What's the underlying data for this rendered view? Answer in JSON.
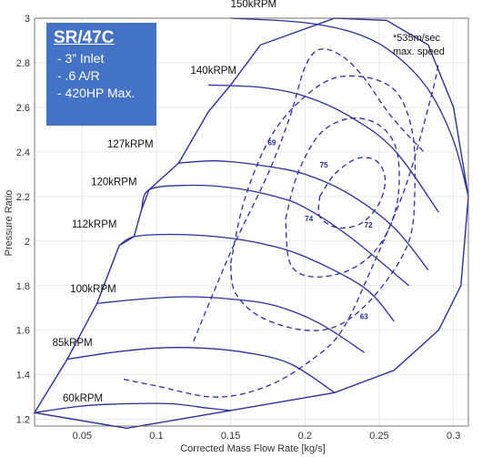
{
  "chart_data": {
    "type": "line",
    "title": "",
    "xlabel": "Corrected Mass Flow Rate [kg/s]",
    "ylabel": "Pressure Ratio",
    "xlim": [
      0.018,
      0.31
    ],
    "ylim": [
      1.17,
      3.0
    ],
    "x_ticks": [
      0.05,
      0.1,
      0.15,
      0.2,
      0.25,
      0.3
    ],
    "x_tick_labels": [
      "0.05",
      "0.1",
      "0.15",
      "0.2",
      "0.25",
      "0.3"
    ],
    "y_ticks": [
      1.2,
      1.4,
      1.6,
      1.8,
      2.0,
      2.2,
      2.4,
      2.6,
      2.8,
      3.0
    ],
    "y_tick_labels": [
      "1.2",
      "1.4",
      "1.6",
      "1.8",
      "2",
      "2.2",
      "2.4",
      "2.6",
      "2.8",
      "3"
    ],
    "grid": true,
    "color": "#2b2fa0",
    "map_boundary": {
      "x": [
        0.018,
        0.04,
        0.06,
        0.075,
        0.085,
        0.09,
        0.095,
        0.115,
        0.135,
        0.15,
        0.17,
        0.22,
        0.255,
        0.283,
        0.3,
        0.31,
        0.305,
        0.29,
        0.26,
        0.22,
        0.15,
        0.08,
        0.018
      ],
      "y": [
        1.23,
        1.47,
        1.72,
        1.98,
        2.02,
        2.14,
        2.23,
        2.35,
        2.58,
        2.7,
        2.88,
        3.0,
        2.99,
        2.88,
        2.6,
        2.2,
        1.8,
        1.6,
        1.42,
        1.32,
        1.24,
        1.16,
        1.23
      ]
    },
    "speed_lines": [
      {
        "name": "60kRPM",
        "x": [
          0.018,
          0.05,
          0.08,
          0.11,
          0.135,
          0.15
        ],
        "y": [
          1.23,
          1.26,
          1.27,
          1.27,
          1.25,
          1.24
        ]
      },
      {
        "name": "85kRPM",
        "x": [
          0.04,
          0.07,
          0.1,
          0.13,
          0.16,
          0.19,
          0.22
        ],
        "y": [
          1.47,
          1.5,
          1.52,
          1.52,
          1.5,
          1.45,
          1.32
        ]
      },
      {
        "name": "100kRPM",
        "x": [
          0.06,
          0.09,
          0.12,
          0.15,
          0.18,
          0.21,
          0.24
        ],
        "y": [
          1.72,
          1.74,
          1.75,
          1.74,
          1.71,
          1.63,
          1.5
        ]
      },
      {
        "name": "112kRPM",
        "x": [
          0.075,
          0.085,
          0.11,
          0.14,
          0.17,
          0.2,
          0.24,
          0.26
        ],
        "y": [
          1.98,
          2.02,
          2.03,
          2.02,
          1.99,
          1.93,
          1.79,
          1.64
        ]
      },
      {
        "name": "120kRPM",
        "x": [
          0.09,
          0.095,
          0.12,
          0.15,
          0.18,
          0.2,
          0.23,
          0.27
        ],
        "y": [
          2.14,
          2.23,
          2.25,
          2.24,
          2.2,
          2.15,
          2.02,
          1.8
        ]
      },
      {
        "name": "127kRPM",
        "x": [
          0.115,
          0.14,
          0.17,
          0.2,
          0.23,
          0.26,
          0.283
        ],
        "y": [
          2.35,
          2.36,
          2.34,
          2.3,
          2.21,
          2.06,
          1.87
        ]
      },
      {
        "name": "140kRPM",
        "x": [
          0.135,
          0.17,
          0.2,
          0.23,
          0.26,
          0.29
        ],
        "y": [
          2.7,
          2.69,
          2.65,
          2.56,
          2.41,
          2.13
        ]
      },
      {
        "name": "150kRPM",
        "x": [
          0.15,
          0.2,
          0.235,
          0.26,
          0.283,
          0.3,
          0.31
        ],
        "y": [
          3.0,
          2.98,
          2.93,
          2.84,
          2.68,
          2.45,
          2.2
        ]
      }
    ],
    "efficiency_islands": [
      {
        "label": "75",
        "x": [
          0.21,
          0.22,
          0.235,
          0.248,
          0.254,
          0.25,
          0.238,
          0.222,
          0.21,
          0.21
        ],
        "y": [
          2.2,
          2.3,
          2.37,
          2.36,
          2.28,
          2.17,
          2.08,
          2.06,
          2.11,
          2.2
        ]
      },
      {
        "label": "74",
        "x": [
          0.187,
          0.195,
          0.21,
          0.23,
          0.25,
          0.262,
          0.262,
          0.25,
          0.23,
          0.205,
          0.19,
          0.187
        ],
        "y": [
          2.1,
          2.3,
          2.48,
          2.55,
          2.52,
          2.4,
          2.17,
          1.98,
          1.87,
          1.84,
          1.9,
          2.1
        ]
      },
      {
        "label": "72",
        "x": [
          0.15,
          0.16,
          0.18,
          0.21,
          0.235,
          0.26,
          0.272,
          0.274,
          0.27,
          0.25,
          0.225,
          0.2,
          0.17,
          0.153,
          0.15
        ],
        "y": [
          1.9,
          2.2,
          2.5,
          2.7,
          2.74,
          2.68,
          2.5,
          2.25,
          2.0,
          1.78,
          1.63,
          1.6,
          1.66,
          1.77,
          1.9
        ]
      },
      {
        "label": "69",
        "x": [
          0.125,
          0.15,
          0.175,
          0.19,
          0.2,
          0.21,
          0.225,
          0.24,
          0.258,
          0.28
        ],
        "y": [
          1.55,
          1.95,
          2.3,
          2.56,
          2.78,
          2.86,
          2.83,
          2.73,
          2.56,
          2.4
        ]
      },
      {
        "label": "63",
        "x": [
          0.078,
          0.1,
          0.14,
          0.175,
          0.205,
          0.225,
          0.245,
          0.268,
          0.285,
          0.29
        ],
        "y": [
          1.38,
          1.35,
          1.3,
          1.35,
          1.47,
          1.6,
          1.88,
          2.25,
          2.65,
          2.8
        ]
      }
    ],
    "efficiency_label_positions": [
      {
        "label": "69",
        "x": 0.175,
        "y": 2.43
      },
      {
        "label": "75",
        "x": 0.21,
        "y": 2.33
      },
      {
        "label": "74",
        "x": 0.2,
        "y": 2.09
      },
      {
        "label": "72",
        "x": 0.24,
        "y": 2.06
      },
      {
        "label": "63",
        "x": 0.237,
        "y": 1.65
      }
    ],
    "speed_label_positions": [
      {
        "label": "150kRPM",
        "x": 0.15,
        "y": 3.05
      },
      {
        "label": "140kRPM",
        "x": 0.123,
        "y": 2.75
      },
      {
        "label": "127kRPM",
        "x": 0.067,
        "y": 2.42
      },
      {
        "label": "120kRPM",
        "x": 0.056,
        "y": 2.25
      },
      {
        "label": "112kRPM",
        "x": 0.043,
        "y": 2.06
      },
      {
        "label": "100kRPM",
        "x": 0.042,
        "y": 1.77
      },
      {
        "label": "85kRPM",
        "x": 0.03,
        "y": 1.53
      },
      {
        "label": "60kRPM",
        "x": 0.037,
        "y": 1.28
      }
    ]
  },
  "spec_box": {
    "title": "SR/47C",
    "lines": [
      "- 3” Inlet",
      "- .6 A/R",
      "- 420HP Max."
    ]
  },
  "notes": {
    "speed_note_line1": "*535m/sec",
    "speed_note_line2": "max. speed"
  }
}
